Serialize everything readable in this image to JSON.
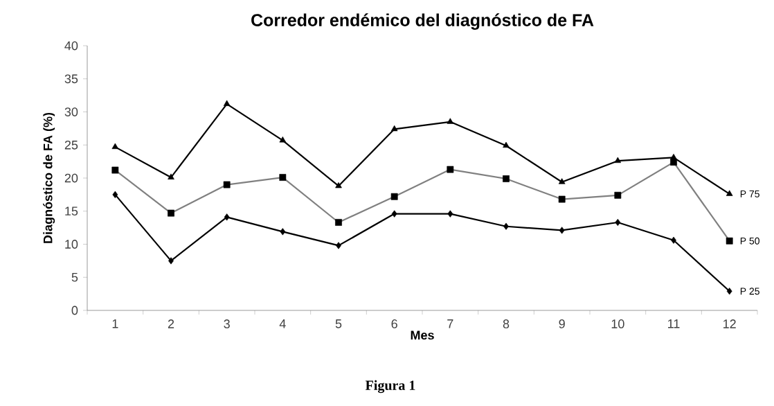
{
  "chart_data": {
    "type": "line",
    "title": "Corredor endémico del diagnóstico de FA",
    "xlabel": "Mes",
    "ylabel": "Diagnóstico de FA (%)",
    "annotations": [
      "Figura 1"
    ],
    "categories": [
      "1",
      "2",
      "3",
      "4",
      "5",
      "6",
      "7",
      "8",
      "9",
      "10",
      "11",
      "12"
    ],
    "series": [
      {
        "name": "P 75",
        "color": "#000000",
        "marker": "triangle",
        "values": [
          24.7,
          20.1,
          31.2,
          25.7,
          18.8,
          27.4,
          28.5,
          24.9,
          19.4,
          22.6,
          23.1,
          17.6
        ]
      },
      {
        "name": "P 50",
        "color": "#808080",
        "marker": "square",
        "values": [
          21.2,
          14.7,
          19.0,
          20.1,
          13.3,
          17.2,
          21.3,
          19.9,
          16.8,
          17.4,
          22.4,
          10.5
        ]
      },
      {
        "name": "P 25",
        "color": "#000000",
        "marker": "diamond",
        "values": [
          17.5,
          7.5,
          14.1,
          11.9,
          9.8,
          14.6,
          14.6,
          12.7,
          12.1,
          13.3,
          10.6,
          2.9
        ]
      }
    ],
    "ylim": [
      0,
      40
    ],
    "yticks": [
      0,
      5,
      10,
      15,
      20,
      25,
      30,
      35,
      40
    ],
    "grid": false,
    "legend": false,
    "line_style": "solid"
  }
}
